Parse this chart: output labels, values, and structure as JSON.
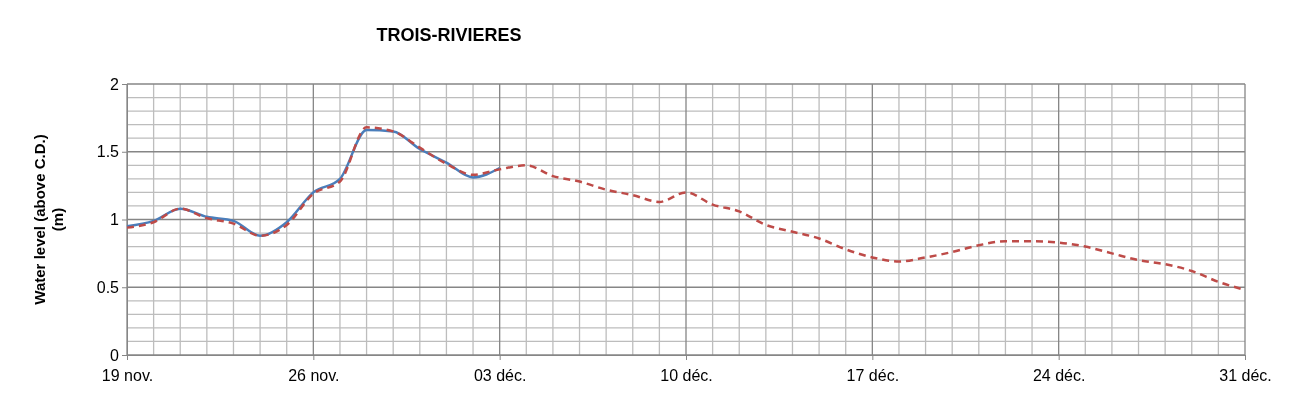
{
  "chart_data": {
    "type": "line",
    "title": "TROIS-RIVIERES",
    "ylabel": "Water level (above C.D.) (m)",
    "xlim": [
      "--11-19",
      "--12-31"
    ],
    "xticks": [
      {
        "value": "--11-19",
        "label": "19 nov."
      },
      {
        "value": "--11-26",
        "label": "26 nov."
      },
      {
        "value": "--12-03",
        "label": "03 déc."
      },
      {
        "value": "--12-10",
        "label": "10 déc."
      },
      {
        "value": "--12-17",
        "label": "17 déc."
      },
      {
        "value": "--12-24",
        "label": "24 déc."
      },
      {
        "value": "--12-31",
        "label": "31 déc."
      }
    ],
    "ylim": [
      0,
      2
    ],
    "yticks": [
      0,
      0.5,
      1,
      1.5,
      2
    ],
    "grid": true,
    "series": [
      {
        "color": "#4a7ebb",
        "line_style": "solid",
        "x": [
          "--11-19",
          "--11-20",
          "--11-21",
          "--11-22",
          "--11-23",
          "--11-24",
          "--11-25",
          "--11-26",
          "--11-27",
          "--11-28",
          "--11-29",
          "--11-30",
          "--12-01",
          "--12-02",
          "--12-03"
        ],
        "values": [
          0.95,
          0.99,
          1.08,
          1.02,
          0.99,
          0.88,
          0.98,
          1.2,
          1.3,
          1.66,
          1.65,
          1.52,
          1.42,
          1.31,
          1.38
        ]
      },
      {
        "color": "#be4b48",
        "line_style": "dashed",
        "x": [
          "--11-19",
          "--11-20",
          "--11-21",
          "--11-22",
          "--11-23",
          "--11-24",
          "--11-25",
          "--11-26",
          "--11-27",
          "--11-28",
          "--11-29",
          "--11-30",
          "--12-01",
          "--12-02",
          "--12-03",
          "--12-04",
          "--12-05",
          "--12-06",
          "--12-07",
          "--12-08",
          "--12-09",
          "--12-10",
          "--12-11",
          "--12-12",
          "--12-13",
          "--12-14",
          "--12-15",
          "--12-16",
          "--12-17",
          "--12-18",
          "--12-19",
          "--12-20",
          "--12-21",
          "--12-22",
          "--12-23",
          "--12-24",
          "--12-25",
          "--12-26",
          "--12-27",
          "--12-28",
          "--12-29",
          "--12-30",
          "--12-31"
        ],
        "values": [
          0.94,
          0.98,
          1.08,
          1.01,
          0.97,
          0.88,
          0.96,
          1.19,
          1.28,
          1.68,
          1.65,
          1.53,
          1.41,
          1.33,
          1.37,
          1.4,
          1.32,
          1.28,
          1.22,
          1.18,
          1.13,
          1.2,
          1.11,
          1.06,
          0.96,
          0.91,
          0.86,
          0.78,
          0.72,
          0.69,
          0.72,
          0.76,
          0.81,
          0.84,
          0.84,
          0.83,
          0.8,
          0.75,
          0.7,
          0.67,
          0.62,
          0.54,
          0.48
        ]
      }
    ]
  }
}
